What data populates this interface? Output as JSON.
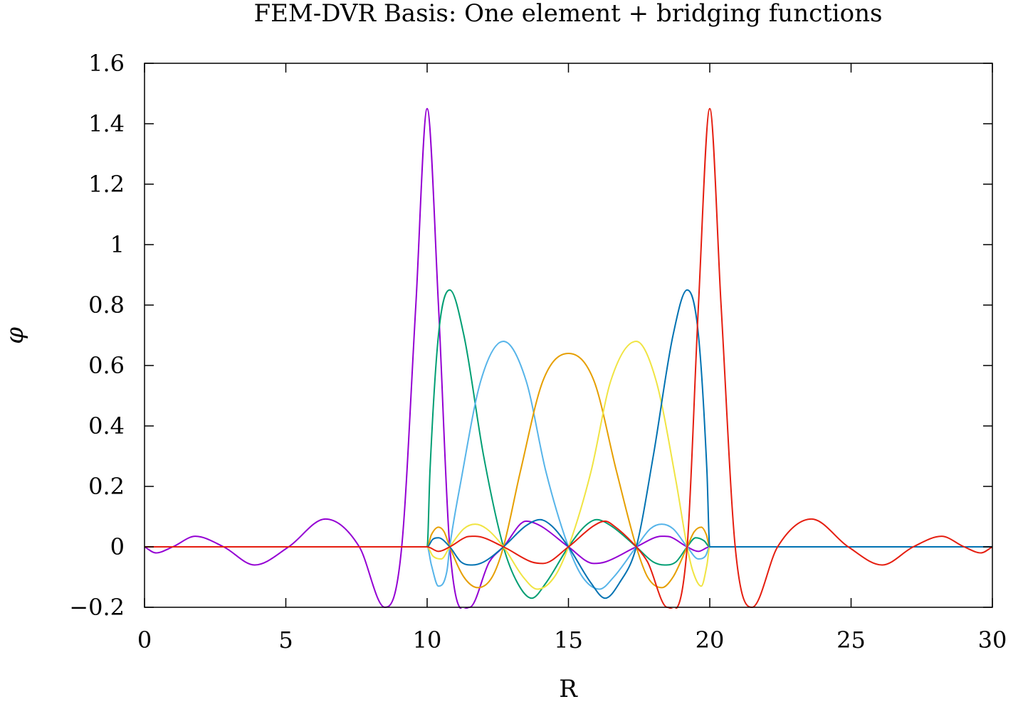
{
  "chart_data": {
    "type": "line",
    "title": "FEM-DVR Basis: One element + bridging functions",
    "xlabel": "R",
    "ylabel": "φ",
    "xlim": [
      0,
      30
    ],
    "ylim": [
      -0.2,
      1.6
    ],
    "x_ticks": [
      "0",
      "5",
      "10",
      "15",
      "20",
      "25",
      "30"
    ],
    "y_ticks": [
      "−0.2",
      "0",
      "0.2",
      "0.4",
      "0.6",
      "0.8",
      "1",
      "1.2",
      "1.4",
      "1.6"
    ],
    "grid": false,
    "legend": "none",
    "series": [
      {
        "color": "#9400d3",
        "points": [
          [
            0,
            0
          ],
          [
            0.4,
            -0.02
          ],
          [
            1,
            0
          ],
          [
            1.8,
            0.035
          ],
          [
            2.8,
            0
          ],
          [
            3.9,
            -0.06
          ],
          [
            5.1,
            0
          ],
          [
            6.4,
            0.092
          ],
          [
            7.6,
            0
          ],
          [
            8.5,
            -0.2
          ],
          [
            9.1,
            0
          ],
          [
            9.6,
            0.8
          ],
          [
            10,
            1.45
          ],
          [
            10.4,
            0.8
          ],
          [
            10.8,
            0
          ],
          [
            11.5,
            -0.2
          ],
          [
            12.2,
            -0.05
          ],
          [
            12.7,
            0
          ],
          [
            13.5,
            0.085
          ],
          [
            14,
            0.07
          ],
          [
            15,
            0
          ],
          [
            15.9,
            -0.055
          ],
          [
            16.3,
            -0.05
          ],
          [
            17.4,
            0
          ],
          [
            18.3,
            0.035
          ],
          [
            18.6,
            0.033
          ],
          [
            19.2,
            0
          ],
          [
            19.6,
            -0.015
          ],
          [
            20,
            0
          ],
          [
            30,
            0
          ]
        ]
      },
      {
        "color": "#009e73",
        "points": [
          [
            0,
            0
          ],
          [
            10,
            0
          ],
          [
            10.1,
            0.25
          ],
          [
            10.4,
            0.7
          ],
          [
            10.8,
            0.85
          ],
          [
            11.3,
            0.7
          ],
          [
            12,
            0.3
          ],
          [
            12.7,
            0
          ],
          [
            13.2,
            -0.12
          ],
          [
            13.7,
            -0.17
          ],
          [
            14.2,
            -0.12
          ],
          [
            15,
            0
          ],
          [
            15.6,
            0.07
          ],
          [
            16,
            0.09
          ],
          [
            16.5,
            0.07
          ],
          [
            17.4,
            0
          ],
          [
            18,
            -0.05
          ],
          [
            18.4,
            -0.06
          ],
          [
            18.8,
            -0.05
          ],
          [
            19.2,
            0
          ],
          [
            19.5,
            0.03
          ],
          [
            19.8,
            0.02
          ],
          [
            20,
            0
          ],
          [
            30,
            0
          ]
        ]
      },
      {
        "color": "#56b4e9",
        "points": [
          [
            0,
            0
          ],
          [
            10,
            0
          ],
          [
            10.15,
            -0.06
          ],
          [
            10.4,
            -0.13
          ],
          [
            10.7,
            -0.08
          ],
          [
            10.8,
            0
          ],
          [
            11.2,
            0.22
          ],
          [
            11.9,
            0.55
          ],
          [
            12.7,
            0.68
          ],
          [
            13.5,
            0.55
          ],
          [
            14.2,
            0.25
          ],
          [
            15,
            0
          ],
          [
            15.5,
            -0.1
          ],
          [
            16.1,
            -0.14
          ],
          [
            16.6,
            -0.1
          ],
          [
            17.4,
            0
          ],
          [
            17.9,
            0.06
          ],
          [
            18.3,
            0.075
          ],
          [
            18.7,
            0.06
          ],
          [
            19.2,
            0
          ],
          [
            19.6,
            -0.04
          ],
          [
            19.85,
            -0.03
          ],
          [
            20,
            0
          ],
          [
            30,
            0
          ]
        ]
      },
      {
        "color": "#e69f00",
        "points": [
          [
            0,
            0
          ],
          [
            10,
            0
          ],
          [
            10.15,
            0.04
          ],
          [
            10.4,
            0.065
          ],
          [
            10.6,
            0.05
          ],
          [
            10.8,
            0
          ],
          [
            11.3,
            -0.1
          ],
          [
            11.8,
            -0.135
          ],
          [
            12.3,
            -0.1
          ],
          [
            12.7,
            0
          ],
          [
            13.3,
            0.25
          ],
          [
            14.1,
            0.55
          ],
          [
            15,
            0.64
          ],
          [
            15.9,
            0.55
          ],
          [
            16.7,
            0.25
          ],
          [
            17.4,
            0
          ],
          [
            17.8,
            -0.1
          ],
          [
            18.3,
            -0.135
          ],
          [
            18.7,
            -0.1
          ],
          [
            19.2,
            0
          ],
          [
            19.45,
            0.05
          ],
          [
            19.7,
            0.065
          ],
          [
            19.88,
            0.04
          ],
          [
            20,
            0
          ],
          [
            30,
            0
          ]
        ]
      },
      {
        "color": "#f0e442",
        "points": [
          [
            0,
            0
          ],
          [
            10,
            0
          ],
          [
            10.2,
            -0.03
          ],
          [
            10.5,
            -0.04
          ],
          [
            10.8,
            0
          ],
          [
            11.3,
            0.06
          ],
          [
            11.7,
            0.075
          ],
          [
            12.1,
            0.06
          ],
          [
            12.7,
            0
          ],
          [
            13.4,
            -0.1
          ],
          [
            13.9,
            -0.14
          ],
          [
            14.5,
            -0.1
          ],
          [
            15,
            0
          ],
          [
            15.8,
            0.25
          ],
          [
            16.5,
            0.55
          ],
          [
            17.4,
            0.68
          ],
          [
            18.1,
            0.55
          ],
          [
            18.8,
            0.22
          ],
          [
            19.2,
            0
          ],
          [
            19.4,
            -0.08
          ],
          [
            19.7,
            -0.13
          ],
          [
            19.9,
            -0.06
          ],
          [
            20,
            0
          ],
          [
            30,
            0
          ]
        ]
      },
      {
        "color": "#0072b2",
        "points": [
          [
            0,
            0
          ],
          [
            10,
            0
          ],
          [
            10.2,
            0.025
          ],
          [
            10.4,
            0.03
          ],
          [
            10.8,
            0
          ],
          [
            11.2,
            -0.05
          ],
          [
            11.6,
            -0.06
          ],
          [
            12,
            -0.05
          ],
          [
            12.7,
            0
          ],
          [
            13.5,
            0.07
          ],
          [
            14,
            0.09
          ],
          [
            14.4,
            0.07
          ],
          [
            15,
            0
          ],
          [
            15.8,
            -0.12
          ],
          [
            16.3,
            -0.17
          ],
          [
            16.8,
            -0.12
          ],
          [
            17.4,
            0
          ],
          [
            18,
            0.3
          ],
          [
            18.7,
            0.7
          ],
          [
            19.2,
            0.85
          ],
          [
            19.6,
            0.7
          ],
          [
            19.9,
            0.25
          ],
          [
            20,
            0
          ],
          [
            30,
            0
          ]
        ]
      },
      {
        "color": "#e51e10",
        "points": [
          [
            0,
            0
          ],
          [
            10,
            0
          ],
          [
            10.4,
            -0.015
          ],
          [
            10.8,
            0
          ],
          [
            11.4,
            0.033
          ],
          [
            11.7,
            0.035
          ],
          [
            12.7,
            0
          ],
          [
            13.7,
            -0.05
          ],
          [
            14.1,
            -0.055
          ],
          [
            15,
            0
          ],
          [
            15.9,
            0.07
          ],
          [
            16.3,
            0.085
          ],
          [
            16.6,
            0.07
          ],
          [
            17.4,
            0
          ],
          [
            17.8,
            -0.05
          ],
          [
            18.5,
            -0.2
          ],
          [
            19.2,
            0
          ],
          [
            19.6,
            0.8
          ],
          [
            20,
            1.45
          ],
          [
            20.4,
            0.8
          ],
          [
            20.9,
            0
          ],
          [
            21.5,
            -0.2
          ],
          [
            22.4,
            0
          ],
          [
            23.6,
            0.092
          ],
          [
            24.9,
            0
          ],
          [
            26.1,
            -0.06
          ],
          [
            27.2,
            0
          ],
          [
            28.2,
            0.035
          ],
          [
            29,
            0
          ],
          [
            29.6,
            -0.02
          ],
          [
            30,
            0
          ]
        ]
      }
    ]
  }
}
